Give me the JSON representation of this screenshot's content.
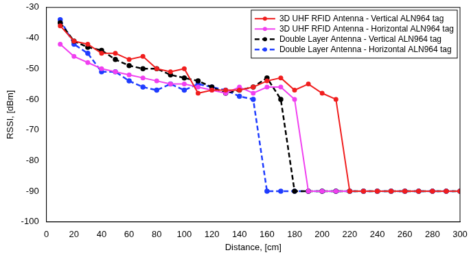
{
  "chart_data": {
    "type": "line",
    "x_label": "Distance, [cm]",
    "y_label": "RSSI, [dBm]",
    "x": [
      10,
      20,
      30,
      40,
      50,
      60,
      70,
      80,
      90,
      100,
      110,
      120,
      130,
      140,
      150,
      160,
      170,
      180,
      190,
      200,
      210,
      220,
      230,
      240,
      250,
      260,
      270,
      280,
      290,
      300
    ],
    "series": [
      {
        "name": "3D UHF RFID Antenna - Vertical ALN964 tag",
        "color": "#f01e1e",
        "marker": "circle",
        "line_style": "solid",
        "values": [
          -36,
          -41,
          -42,
          -45,
          -45,
          -47,
          -46,
          -50,
          -51,
          -50,
          -58,
          -57,
          -57,
          -57,
          -56,
          -54,
          -53,
          -57,
          -55,
          -58,
          -60,
          -90,
          -90,
          -90,
          -90,
          -90,
          -90,
          -90,
          -90,
          -90
        ]
      },
      {
        "name": "3D UHF RFID Antenna - Horizontal ALN964 tag",
        "color": "#f040f0",
        "marker": "circle",
        "line_style": "solid",
        "values": [
          -42,
          -46,
          -48,
          -50,
          -51,
          -52,
          -53,
          -54,
          -55,
          -55,
          -56,
          -57,
          -58,
          -56,
          -58,
          -56,
          -56,
          -60,
          -90,
          -90,
          -90,
          -90,
          -90,
          -90,
          -90,
          -90,
          -90,
          -90,
          -90,
          -90
        ]
      },
      {
        "name": "Double Layer Antenna - Vertical ALN964 tag",
        "color": "#000000",
        "marker": "circle",
        "line_style": "dashed",
        "values": [
          -35,
          -41,
          -43,
          -44,
          -47,
          -49,
          -50,
          -50,
          -52,
          -53,
          -54,
          -56,
          -58,
          -57,
          -56,
          -53,
          -60,
          -90,
          -90,
          -90,
          -90,
          -90,
          -90,
          -90,
          -90,
          -90,
          -90,
          -90,
          -90,
          -90
        ]
      },
      {
        "name": "Double Layer Antenna - Horizontal ALN964 tag",
        "color": "#1f3cff",
        "marker": "circle",
        "line_style": "dashed",
        "values": [
          -34,
          -42,
          -45,
          -51,
          -51,
          -54,
          -56,
          -57,
          -55,
          -57,
          -55,
          -56,
          -57,
          -59,
          -60,
          -90,
          -90,
          -90,
          -90,
          -90,
          -90,
          -90,
          -90,
          -90,
          -90,
          -90,
          -90,
          -90,
          -90,
          -90
        ]
      }
    ],
    "xlim": [
      0,
      300
    ],
    "xticks": [
      0,
      20,
      40,
      60,
      80,
      100,
      120,
      140,
      160,
      180,
      200,
      220,
      240,
      260,
      280,
      300
    ],
    "ylim": [
      -100,
      -30
    ],
    "yticks": [
      -100,
      -90,
      -80,
      -70,
      -60,
      -50,
      -40,
      -30
    ],
    "grid": false,
    "legend": "upper right"
  }
}
